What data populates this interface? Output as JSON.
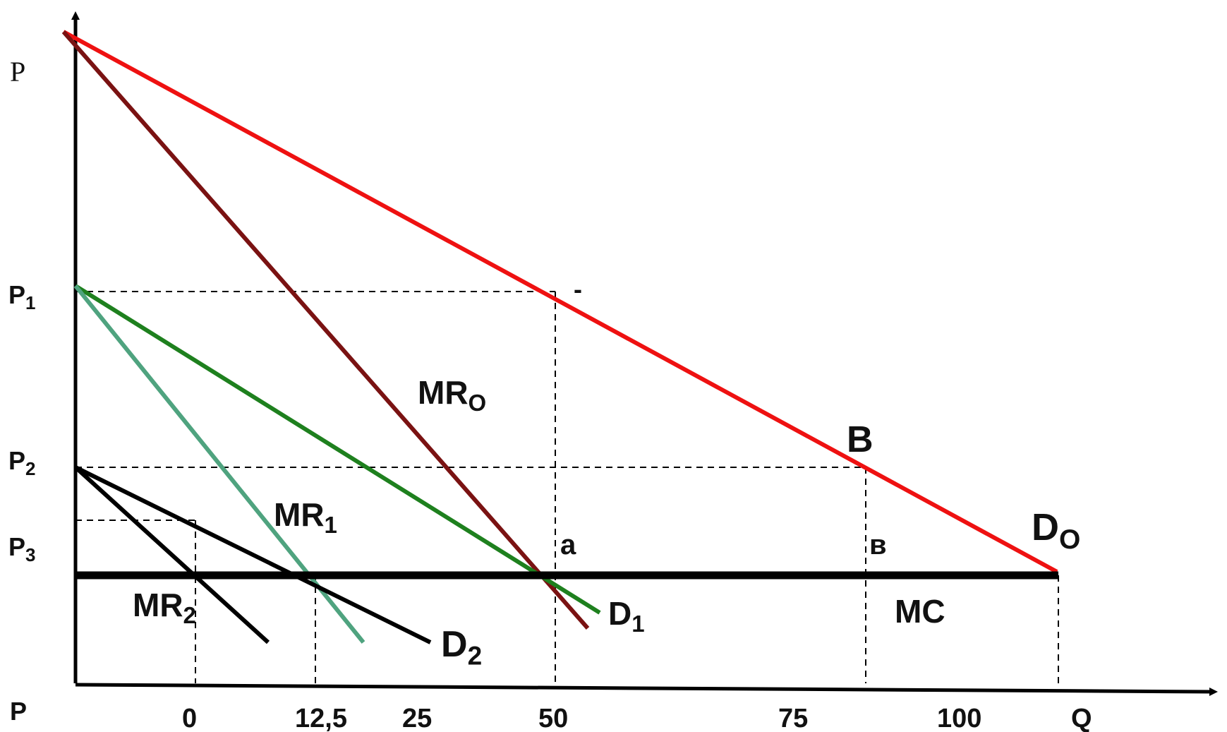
{
  "chart_data": {
    "type": "line",
    "title": "",
    "xlabel": "Q",
    "ylabel": "P",
    "origin_label": "P",
    "x_ticks": [
      "0",
      "12,5",
      "25",
      "50",
      "75",
      "100"
    ],
    "y_ticks": [
      "P1",
      "P2",
      "P3"
    ],
    "y_tick_values": {
      "P1": 0.59,
      "P2": 0.33,
      "P3": 0.25
    },
    "mc_level": 0.17,
    "series": [
      {
        "name": "Do",
        "color": "#ee1111",
        "points": [
          [
            0,
            0.97
          ],
          [
            120,
            0.17
          ]
        ]
      },
      {
        "name": "MRo",
        "color": "#7a1212",
        "points": [
          [
            0,
            0.97
          ],
          [
            50,
            0.09
          ]
        ]
      },
      {
        "name": "D1",
        "color": "#1e801e",
        "points": [
          [
            0,
            0.59
          ],
          [
            55,
            0.11
          ]
        ]
      },
      {
        "name": "MR1",
        "color": "#4fa37f",
        "points": [
          [
            0,
            0.59
          ],
          [
            30,
            0.07
          ]
        ]
      },
      {
        "name": "D2",
        "color": "#000000",
        "points": [
          [
            0,
            0.33
          ],
          [
            37,
            0.06
          ]
        ]
      },
      {
        "name": "MR2",
        "color": "#000000",
        "points": [
          [
            0,
            0.33
          ],
          [
            20,
            0.07
          ]
        ]
      },
      {
        "name": "MC",
        "color": "#000000",
        "points": [
          [
            0,
            0.17
          ],
          [
            120,
            0.17
          ]
        ]
      }
    ],
    "annotations": [
      {
        "text": "a",
        "x": 50,
        "y": 0.17
      },
      {
        "text": "в",
        "x": 82,
        "y": 0.17
      },
      {
        "text": "B",
        "x": 82,
        "y": 0.33
      },
      {
        "text": "-",
        "x": 50,
        "y": 0.59
      }
    ],
    "ylim": [
      0,
      1
    ],
    "xlim": [
      -1,
      145
    ],
    "grid": false,
    "legend": "none"
  }
}
